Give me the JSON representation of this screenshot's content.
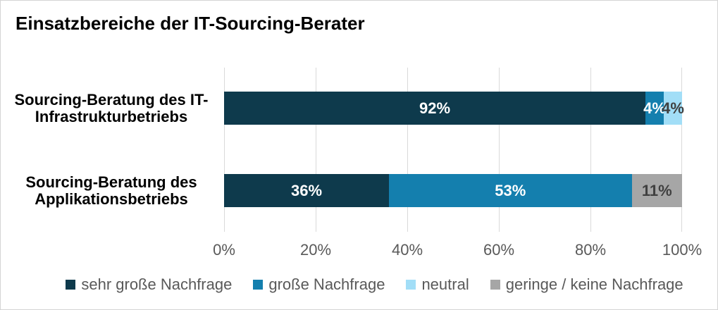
{
  "chart_data": {
    "type": "bar",
    "orientation": "horizontal",
    "stacked": true,
    "title": "Einsatzbereiche der IT-Sourcing-Berater",
    "categories": [
      "Sourcing-Beratung des IT-\nInfrastrukturbetriebs",
      "Sourcing-Beratung des\nApplikationsbetriebs"
    ],
    "series": [
      {
        "name": "sehr große Nachfrage",
        "color": "#0e3a4c",
        "label_color": "#ffffff",
        "values": [
          92,
          36
        ]
      },
      {
        "name": "große Nachfrage",
        "color": "#147fae",
        "label_color": "#ffffff",
        "values": [
          4,
          53
        ]
      },
      {
        "name": "neutral",
        "color": "#a2def7",
        "label_color": "#404040",
        "values": [
          4,
          0
        ]
      },
      {
        "name": "geringe / keine Nachfrage",
        "color": "#a6a6a6",
        "label_color": "#404040",
        "values": [
          0,
          11
        ]
      }
    ],
    "data_label_format": "{value}%",
    "xlim": [
      0,
      100
    ],
    "x_ticks": [
      {
        "value": 0,
        "label": "0%"
      },
      {
        "value": 20,
        "label": "20%"
      },
      {
        "value": 40,
        "label": "40%"
      },
      {
        "value": 60,
        "label": "60%"
      },
      {
        "value": 80,
        "label": "80%"
      },
      {
        "value": 100,
        "label": "100%"
      }
    ],
    "grid": true,
    "gridline_color": "#d9d9d9",
    "axis_text_color": "#595959",
    "legend_position": "bottom",
    "background": "#ffffff"
  }
}
